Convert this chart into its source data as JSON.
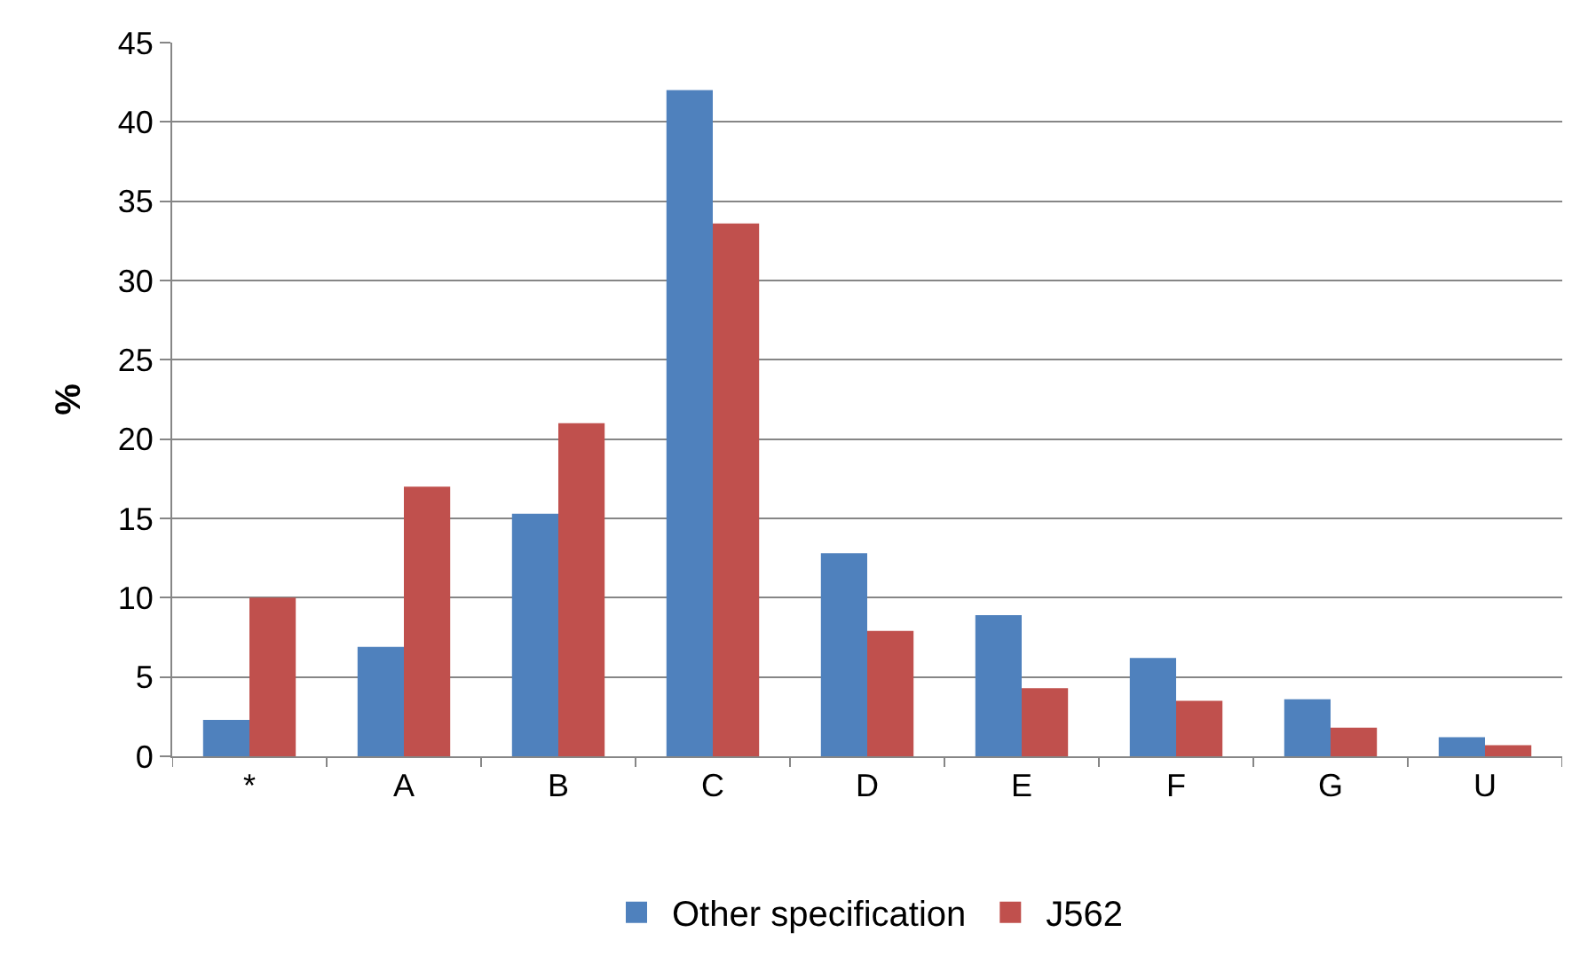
{
  "chart_data": {
    "type": "bar",
    "ylabel": "%",
    "categories": [
      "*",
      "A",
      "B",
      "C",
      "D",
      "E",
      "F",
      "G",
      "U"
    ],
    "series": [
      {
        "name": "Other specification",
        "color": "#4f81bd",
        "values": [
          2.3,
          6.9,
          15.3,
          42.0,
          12.8,
          8.9,
          6.2,
          3.6,
          1.2
        ]
      },
      {
        "name": "J562",
        "color": "#c0504d",
        "values": [
          10.0,
          17.0,
          21.0,
          33.6,
          7.9,
          4.3,
          3.5,
          1.8,
          0.7
        ]
      }
    ],
    "ylim": [
      0,
      45
    ],
    "yticks": [
      0,
      5,
      10,
      15,
      20,
      25,
      30,
      35,
      40,
      45
    ],
    "grid": "y",
    "legend": "bottom"
  }
}
